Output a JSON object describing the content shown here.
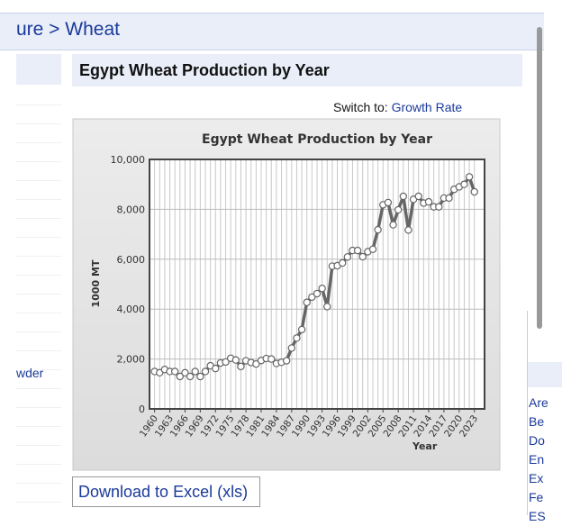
{
  "breadcrumb": "ure > Wheat",
  "heading": "Egypt Wheat Production by Year",
  "switch_label": "Switch to:",
  "switch_link": "Growth Rate",
  "download": "Download to Excel (xls)",
  "left_items": [
    "wder"
  ],
  "right_items": [
    "Are",
    "Be",
    "Do",
    "En",
    "Ex",
    "Fe",
    "ES"
  ],
  "chart_data": {
    "type": "line",
    "title": "Egypt Wheat Production by Year",
    "x_label": "Year",
    "y_label": "1000 MT",
    "x": [
      1960,
      1961,
      1962,
      1963,
      1964,
      1965,
      1966,
      1967,
      1968,
      1969,
      1970,
      1971,
      1972,
      1973,
      1974,
      1975,
      1976,
      1977,
      1978,
      1979,
      1980,
      1981,
      1982,
      1983,
      1984,
      1985,
      1986,
      1987,
      1988,
      1989,
      1990,
      1991,
      1992,
      1993,
      1994,
      1995,
      1996,
      1997,
      1998,
      1999,
      2000,
      2001,
      2002,
      2003,
      2004,
      2005,
      2006,
      2007,
      2008,
      2009,
      2010,
      2011,
      2012,
      2013,
      2014,
      2015,
      2016,
      2017,
      2018,
      2019,
      2020,
      2021,
      2022,
      2023
    ],
    "series": [
      {
        "name": "Production",
        "color": "#666666",
        "values": [
          1500,
          1450,
          1580,
          1500,
          1500,
          1300,
          1450,
          1300,
          1500,
          1300,
          1500,
          1730,
          1620,
          1840,
          1880,
          2030,
          1960,
          1700,
          1930,
          1860,
          1800,
          1940,
          2020,
          2000,
          1820,
          1870,
          1930,
          2440,
          2840,
          3180,
          4270,
          4480,
          4620,
          4830,
          4100,
          5720,
          5740,
          5850,
          6090,
          6350,
          6350,
          6100,
          6300,
          6400,
          7180,
          8180,
          8270,
          7380,
          7980,
          8520,
          7170,
          8400,
          8520,
          8250,
          8300,
          8100,
          8100,
          8450,
          8450,
          8800,
          8900,
          9000,
          9300,
          8700
        ]
      }
    ],
    "xlim": [
      1959,
      2025
    ],
    "xticks": [
      1960,
      1963,
      1966,
      1969,
      1972,
      1975,
      1978,
      1981,
      1984,
      1987,
      1990,
      1993,
      1996,
      1999,
      2002,
      2005,
      2008,
      2011,
      2014,
      2017,
      2020,
      2023
    ],
    "ylim": [
      0,
      10000
    ],
    "yticks": [
      0,
      {
        "value": 2000,
        "label": "2,000"
      },
      {
        "value": 4000,
        "label": "4,000"
      },
      {
        "value": 6000,
        "label": "6,000"
      },
      {
        "value": 8000,
        "label": "8,000"
      },
      {
        "value": 10000,
        "label": "10,000"
      }
    ],
    "grid": true
  }
}
